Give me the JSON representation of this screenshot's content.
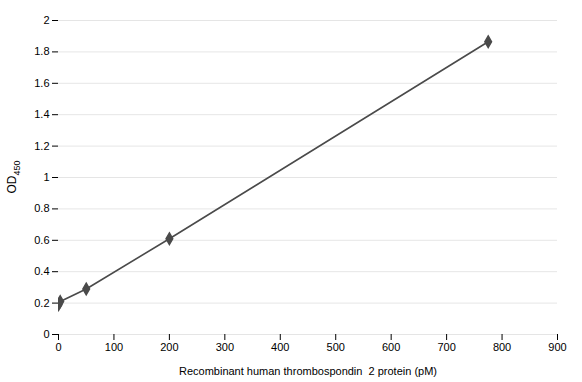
{
  "chart_data": {
    "type": "line",
    "x": [
      0,
      3.125,
      50,
      200,
      775
    ],
    "values": [
      0.19,
      0.21,
      0.29,
      0.61,
      1.865
    ],
    "color": "#4a4a4a",
    "marker": "diamond",
    "xlabel": "Recombinant human thrombospondin  2 protein (pM)",
    "ylabel": "OD450",
    "xlim": [
      0,
      900
    ],
    "ylim": [
      0,
      2.0
    ],
    "xticks": [
      0,
      100,
      200,
      300,
      400,
      500,
      600,
      700,
      800,
      900
    ],
    "yticks": [
      0,
      0.2,
      0.4,
      0.6,
      0.8,
      1.0,
      1.2,
      1.4,
      1.6,
      1.8,
      2.0
    ],
    "grid": true
  }
}
